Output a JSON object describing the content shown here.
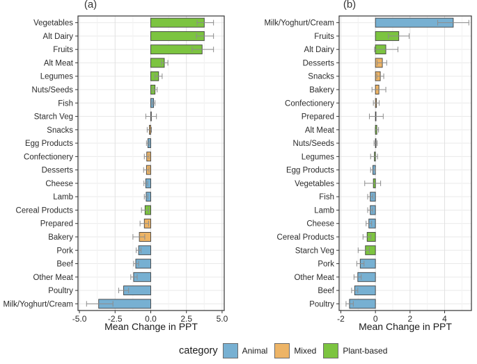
{
  "figure": {
    "legend": {
      "title": "category",
      "items": [
        {
          "label": "Animal",
          "color": "#77B0D2",
          "swatch_icon": "square-swatch"
        },
        {
          "label": "Mixed",
          "color": "#EDB466",
          "swatch_icon": "square-swatch"
        },
        {
          "label": "Plant-based",
          "color": "#7CC440",
          "swatch_icon": "square-swatch"
        }
      ]
    }
  },
  "chart_data": [
    {
      "type": "bar",
      "orientation": "horizontal",
      "panel_label": "(a)",
      "xlabel": "Mean Change in PPT",
      "ylabel": "",
      "xlim": [
        -5.1,
        5.15
      ],
      "xticks": [
        -5.0,
        -2.5,
        0.0,
        2.5,
        5.0
      ],
      "xtick_labels": [
        "-5.0",
        "-2.5",
        "0.0",
        "2.5",
        "5.0"
      ],
      "xticks_minor": [
        -3.75,
        -1.25,
        1.25,
        3.75
      ],
      "grid": true,
      "error_bars": true,
      "bars": [
        {
          "label": "Vegetables",
          "group": "Plant-based",
          "value": 3.75,
          "ci": [
            3.25,
            4.4
          ]
        },
        {
          "label": "Alt Dairy",
          "group": "Plant-based",
          "value": 3.75,
          "ci": [
            3.2,
            4.4
          ]
        },
        {
          "label": "Fruits",
          "group": "Plant-based",
          "value": 3.6,
          "ci": [
            2.9,
            4.4
          ]
        },
        {
          "label": "Alt Meat",
          "group": "Plant-based",
          "value": 0.95,
          "ci": [
            0.75,
            1.2
          ]
        },
        {
          "label": "Legumes",
          "group": "Plant-based",
          "value": 0.55,
          "ci": [
            0.3,
            0.8
          ]
        },
        {
          "label": "Nuts/Seeds",
          "group": "Plant-based",
          "value": 0.3,
          "ci": [
            0.15,
            0.45
          ]
        },
        {
          "label": "Fish",
          "group": "Animal",
          "value": 0.2,
          "ci": [
            0.1,
            0.3
          ]
        },
        {
          "label": "Starch Veg",
          "group": "Plant-based",
          "value": 0.02,
          "ci": [
            -0.35,
            0.4
          ]
        },
        {
          "label": "Snacks",
          "group": "Mixed",
          "value": -0.1,
          "ci": [
            -0.25,
            0.05
          ]
        },
        {
          "label": "Egg Products",
          "group": "Animal",
          "value": -0.2,
          "ci": [
            -0.3,
            -0.1
          ]
        },
        {
          "label": "Confectionery",
          "group": "Mixed",
          "value": -0.28,
          "ci": [
            -0.45,
            -0.12
          ]
        },
        {
          "label": "Desserts",
          "group": "Mixed",
          "value": -0.3,
          "ci": [
            -0.5,
            -0.12
          ]
        },
        {
          "label": "Cheese",
          "group": "Animal",
          "value": -0.35,
          "ci": [
            -0.48,
            -0.22
          ]
        },
        {
          "label": "Lamb",
          "group": "Animal",
          "value": -0.32,
          "ci": [
            -0.45,
            -0.2
          ]
        },
        {
          "label": "Cereal Products",
          "group": "Plant-based",
          "value": -0.4,
          "ci": [
            -0.65,
            -0.15
          ]
        },
        {
          "label": "Prepared",
          "group": "Mixed",
          "value": -0.45,
          "ci": [
            -0.75,
            -0.15
          ]
        },
        {
          "label": "Bakery",
          "group": "Mixed",
          "value": -0.8,
          "ci": [
            -1.25,
            -0.42
          ]
        },
        {
          "label": "Pork",
          "group": "Animal",
          "value": -0.85,
          "ci": [
            -1.02,
            -0.68
          ]
        },
        {
          "label": "Beef",
          "group": "Animal",
          "value": -1.05,
          "ci": [
            -1.2,
            -0.85
          ]
        },
        {
          "label": "Other Meat",
          "group": "Animal",
          "value": -1.2,
          "ci": [
            -1.4,
            -0.95
          ]
        },
        {
          "label": "Poultry",
          "group": "Animal",
          "value": -1.9,
          "ci": [
            -2.25,
            -1.55
          ]
        },
        {
          "label": "Milk/Yoghurt/Cream",
          "group": "Animal",
          "value": -3.65,
          "ci": [
            -4.5,
            -2.65
          ]
        }
      ]
    },
    {
      "type": "bar",
      "orientation": "horizontal",
      "panel_label": "(b)",
      "xlabel": "Mean Change in PPT",
      "ylabel": "",
      "xlim": [
        -2.1,
        5.55
      ],
      "xticks": [
        -2,
        0,
        2,
        4
      ],
      "xtick_labels": [
        "-2",
        "0",
        "2",
        "4"
      ],
      "xticks_minor": [
        -1,
        1,
        3,
        5
      ],
      "grid": true,
      "error_bars": true,
      "bars": [
        {
          "label": "Milk/Yoghurt/Cream",
          "group": "Animal",
          "value": 4.5,
          "ci": [
            3.6,
            5.4
          ]
        },
        {
          "label": "Fruits",
          "group": "Plant-based",
          "value": 1.35,
          "ci": [
            0.75,
            1.95
          ]
        },
        {
          "label": "Alt Dairy",
          "group": "Plant-based",
          "value": 0.6,
          "ci": [
            -0.05,
            1.3
          ]
        },
        {
          "label": "Desserts",
          "group": "Mixed",
          "value": 0.4,
          "ci": [
            0.1,
            0.65
          ]
        },
        {
          "label": "Snacks",
          "group": "Mixed",
          "value": 0.28,
          "ci": [
            0.08,
            0.48
          ]
        },
        {
          "label": "Bakery",
          "group": "Mixed",
          "value": 0.2,
          "ci": [
            -0.2,
            0.6
          ]
        },
        {
          "label": "Confectionery",
          "group": "Mixed",
          "value": 0.06,
          "ci": [
            -0.12,
            0.22
          ]
        },
        {
          "label": "Prepared",
          "group": "Mixed",
          "value": 0.02,
          "ci": [
            -0.35,
            0.45
          ]
        },
        {
          "label": "Alt Meat",
          "group": "Plant-based",
          "value": 0.08,
          "ci": [
            -0.02,
            0.18
          ]
        },
        {
          "label": "Nuts/Seeds",
          "group": "Plant-based",
          "value": 0.02,
          "ci": [
            -0.08,
            0.1
          ]
        },
        {
          "label": "Legumes",
          "group": "Plant-based",
          "value": -0.06,
          "ci": [
            -0.28,
            0.12
          ]
        },
        {
          "label": "Egg Products",
          "group": "Animal",
          "value": -0.15,
          "ci": [
            -0.28,
            -0.02
          ]
        },
        {
          "label": "Vegetables",
          "group": "Plant-based",
          "value": -0.12,
          "ci": [
            -0.62,
            0.3
          ]
        },
        {
          "label": "Fish",
          "group": "Animal",
          "value": -0.3,
          "ci": [
            -0.45,
            -0.15
          ]
        },
        {
          "label": "Lamb",
          "group": "Animal",
          "value": -0.3,
          "ci": [
            -0.45,
            -0.16
          ]
        },
        {
          "label": "Cheese",
          "group": "Animal",
          "value": -0.38,
          "ci": [
            -0.54,
            -0.22
          ]
        },
        {
          "label": "Cereal Products",
          "group": "Plant-based",
          "value": -0.48,
          "ci": [
            -0.72,
            -0.26
          ]
        },
        {
          "label": "Starch Veg",
          "group": "Plant-based",
          "value": -0.58,
          "ci": [
            -1.0,
            -0.35
          ]
        },
        {
          "label": "Pork",
          "group": "Animal",
          "value": -0.88,
          "ci": [
            -1.08,
            -0.66
          ]
        },
        {
          "label": "Other Meat",
          "group": "Animal",
          "value": -1.02,
          "ci": [
            -1.24,
            -0.82
          ]
        },
        {
          "label": "Beef",
          "group": "Animal",
          "value": -1.2,
          "ci": [
            -1.38,
            -1.02
          ]
        },
        {
          "label": "Poultry",
          "group": "Animal",
          "value": -1.5,
          "ci": [
            -1.7,
            -1.28
          ]
        }
      ]
    }
  ]
}
